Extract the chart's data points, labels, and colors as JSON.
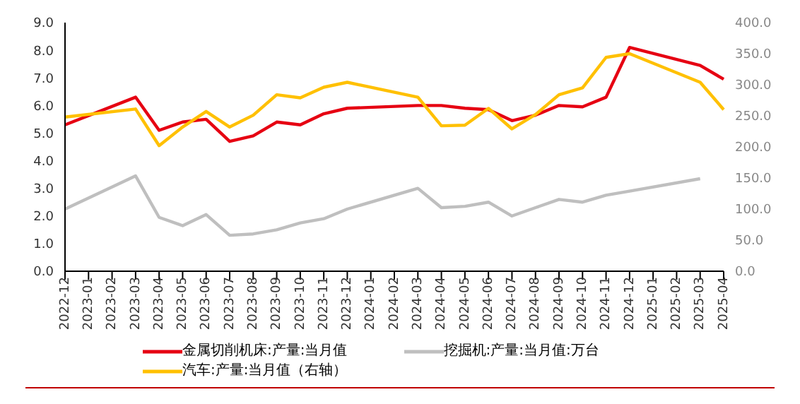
{
  "chart_data": {
    "type": "line",
    "categories": [
      "2022-12",
      "2023-01",
      "2023-02",
      "2023-03",
      "2023-04",
      "2023-05",
      "2023-06",
      "2023-07",
      "2023-08",
      "2023-09",
      "2023-10",
      "2023-11",
      "2023-12",
      "2024-01",
      "2024-02",
      "2024-03",
      "2024-04",
      "2024-05",
      "2024-06",
      "2024-07",
      "2024-08",
      "2024-09",
      "2024-10",
      "2024-11",
      "2024-12",
      "2025-01",
      "2025-02",
      "2025-03",
      "2025-04"
    ],
    "series": [
      {
        "name": "金属切削机床:产量:当月值",
        "color": "#e60012",
        "values": [
          5.3,
          null,
          null,
          6.3,
          5.1,
          5.4,
          5.5,
          4.7,
          4.9,
          5.4,
          5.3,
          5.7,
          5.9,
          null,
          null,
          6.0,
          6.0,
          5.9,
          5.85,
          5.45,
          5.65,
          6.0,
          5.95,
          6.3,
          8.1,
          null,
          null,
          7.45,
          6.95
        ]
      },
      {
        "name": "挖掘机:产量:当月值:万台",
        "color": "#bfbfbf",
        "values": [
          2.25,
          null,
          null,
          3.45,
          1.95,
          1.65,
          2.05,
          1.3,
          1.35,
          1.5,
          1.75,
          1.9,
          2.25,
          null,
          null,
          3.0,
          2.3,
          2.35,
          2.5,
          2.0,
          2.3,
          2.6,
          2.5,
          2.75,
          2.9,
          null,
          null,
          3.35,
          null
        ]
      },
      {
        "name": "汽车:产量:当月值（右轴）",
        "color": "#ffc000",
        "axis": "y2",
        "values": [
          248,
          null,
          null,
          261,
          202,
          232,
          257,
          232,
          251,
          284,
          279,
          296,
          304,
          null,
          null,
          280,
          234,
          235,
          262,
          229,
          252,
          284,
          295,
          344,
          350,
          null,
          null,
          304,
          260
        ]
      }
    ],
    "ylim": [
      0,
      9
    ],
    "yticks": [
      {
        "value": 0,
        "label": "0.0"
      },
      {
        "value": 1,
        "label": "1.0"
      },
      {
        "value": 2,
        "label": "2.0"
      },
      {
        "value": 3,
        "label": "3.0"
      },
      {
        "value": 4,
        "label": "4.0"
      },
      {
        "value": 5,
        "label": "5.0"
      },
      {
        "value": 6,
        "label": "6.0"
      },
      {
        "value": 7,
        "label": "7.0"
      },
      {
        "value": 8,
        "label": "8.0"
      },
      {
        "value": 9,
        "label": "9.0"
      }
    ],
    "y2lim": [
      0,
      400
    ],
    "y2ticks": [
      {
        "value": 0,
        "label": "0.0"
      },
      {
        "value": 50,
        "label": "50.0"
      },
      {
        "value": 100,
        "label": "100.0"
      },
      {
        "value": 150,
        "label": "150.0"
      },
      {
        "value": 200,
        "label": "200.0"
      },
      {
        "value": 250,
        "label": "250.0"
      },
      {
        "value": 300,
        "label": "300.0"
      },
      {
        "value": 350,
        "label": "350.0"
      },
      {
        "value": 400,
        "label": "400.0"
      }
    ],
    "grid": false,
    "legend": "bottom",
    "marker": "none",
    "line_style": "solid"
  }
}
